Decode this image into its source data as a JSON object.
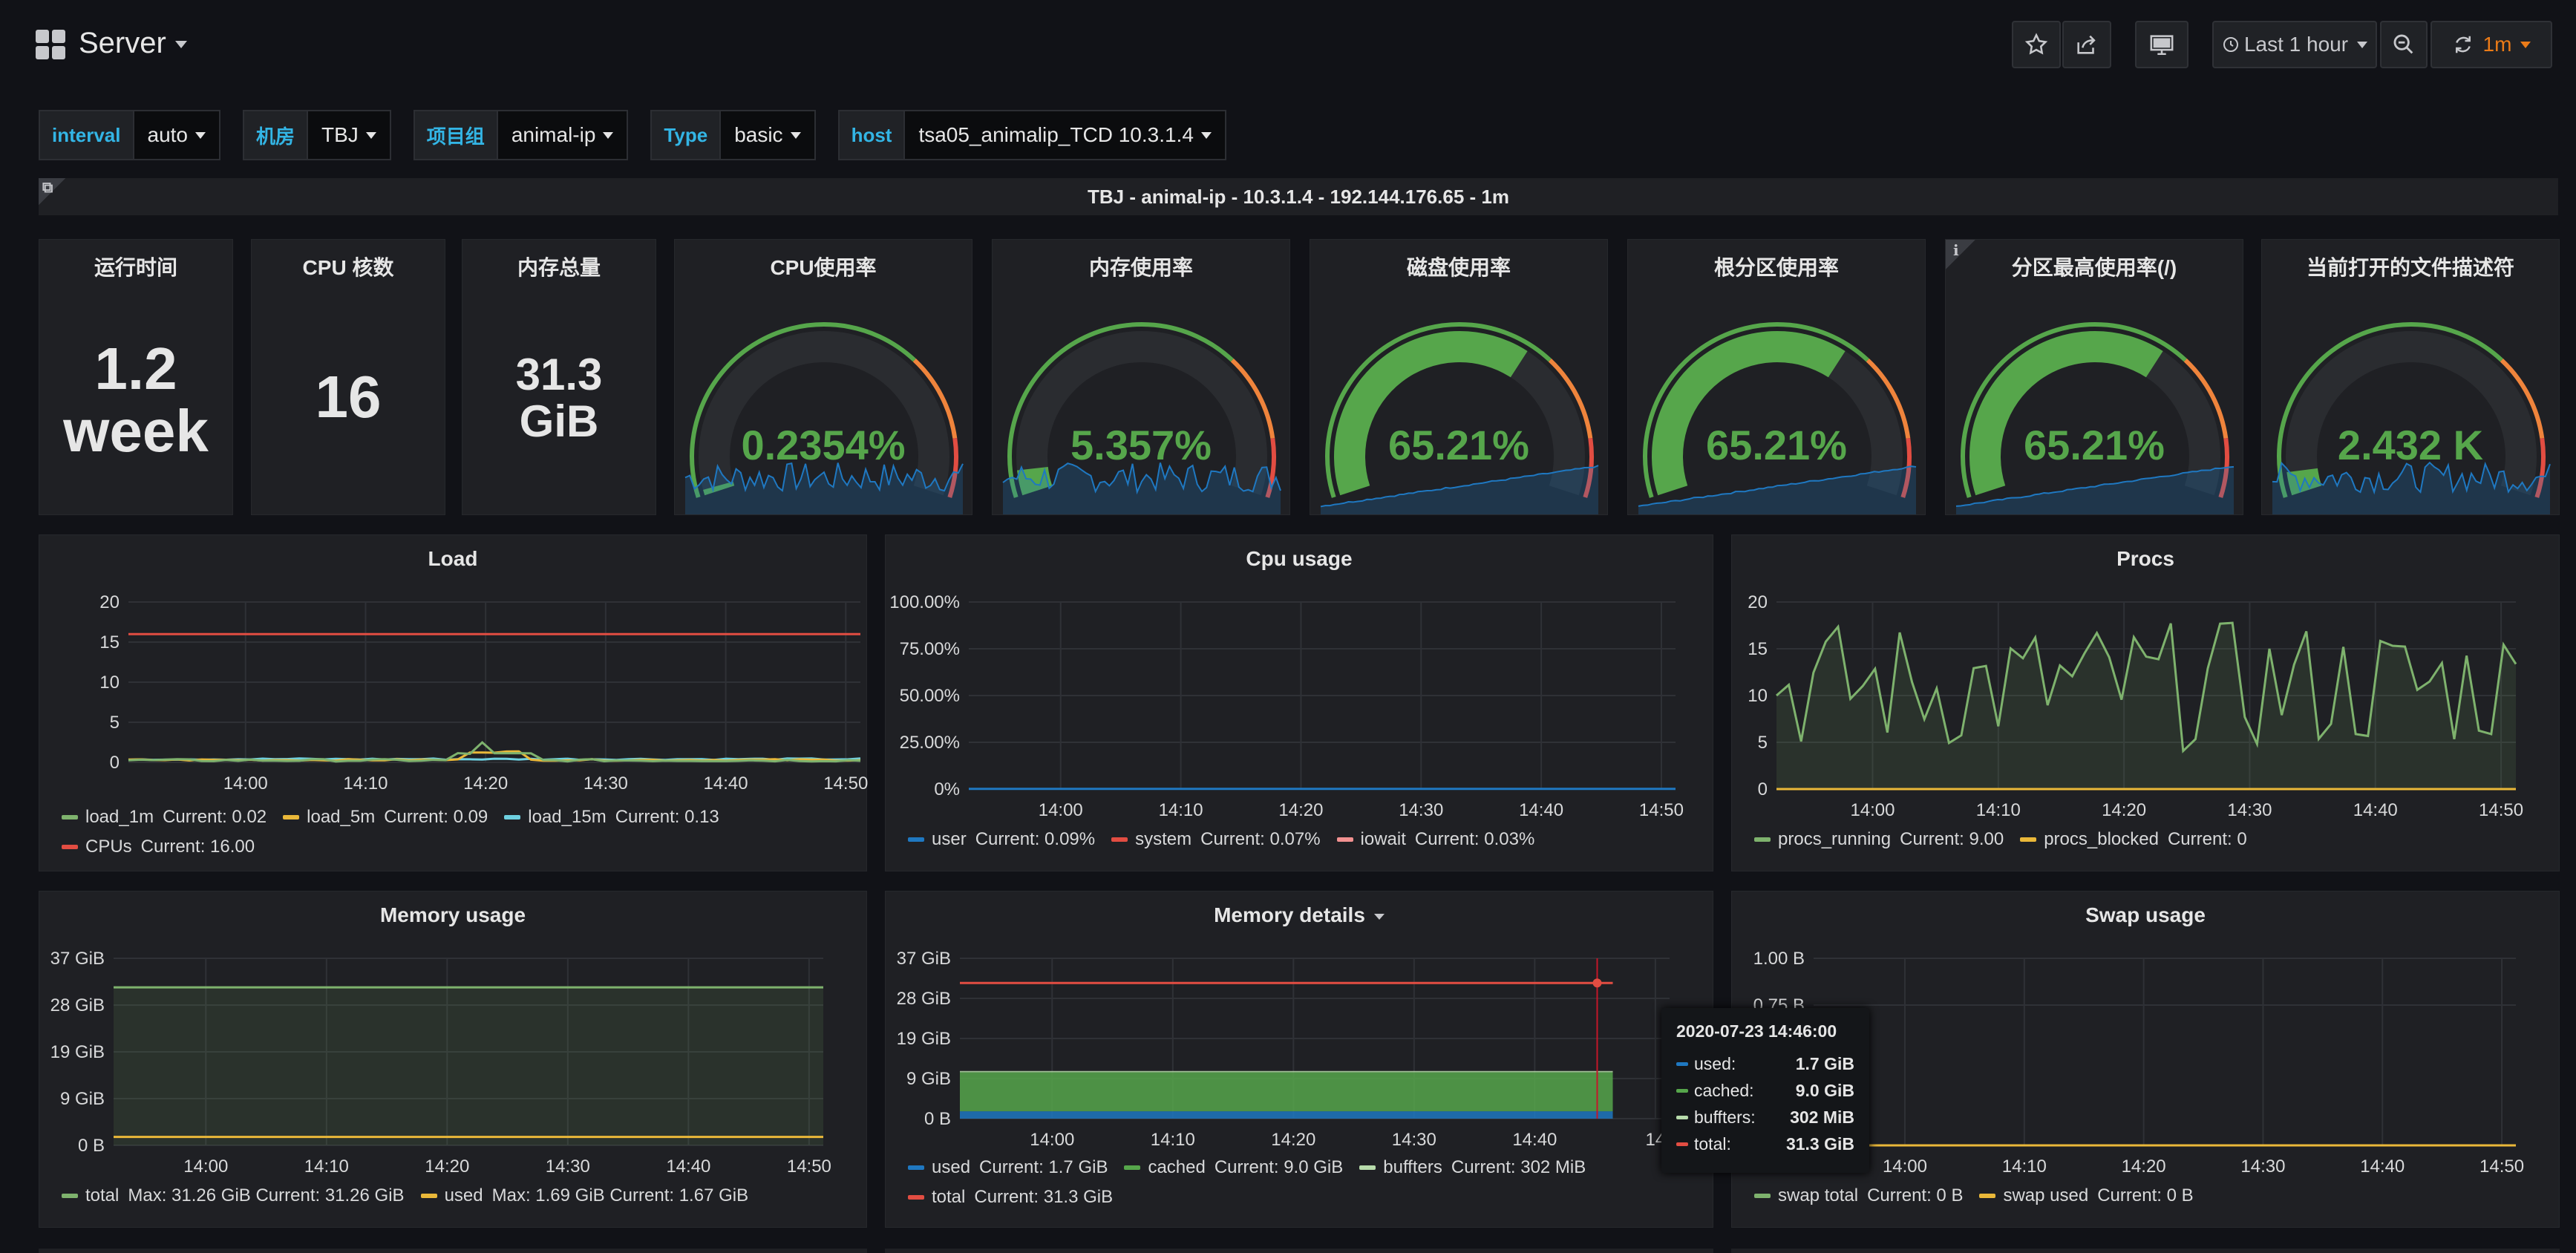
{
  "header": {
    "title": "Server",
    "time_range": "Last 1 hour",
    "refresh": "1m"
  },
  "variables": [
    {
      "label": "interval",
      "value": "auto"
    },
    {
      "label": "机房",
      "value": "TBJ"
    },
    {
      "label": "项目组",
      "value": "animal-ip"
    },
    {
      "label": "Type",
      "value": "basic"
    },
    {
      "label": "host",
      "value": "tsa05_animalip_TCD 10.3.1.4"
    }
  ],
  "info_bar": "TBJ - animal-ip - 10.3.1.4 - 192.144.176.65 - 1m",
  "stats": [
    {
      "title": "运行时间",
      "line1": "1.2",
      "line2": "week"
    },
    {
      "title": "CPU 核数",
      "line1": "16",
      "line2": ""
    },
    {
      "title": "内存总量",
      "line1": "31.3",
      "line2": "GiB"
    }
  ],
  "gauges": [
    {
      "title": "CPU使用率",
      "value": "0.2354%",
      "fraction": 0.0024,
      "color": "#56a64b"
    },
    {
      "title": "内存使用率",
      "value": "5.357%",
      "fraction": 0.054,
      "color": "#56a64b"
    },
    {
      "title": "磁盘使用率",
      "value": "65.21%",
      "fraction": 0.652,
      "color": "#56a64b"
    },
    {
      "title": "根分区使用率",
      "value": "65.21%",
      "fraction": 0.652,
      "color": "#56a64b"
    },
    {
      "title": "分区最高使用率(/)",
      "value": "65.21%",
      "fraction": 0.652,
      "color": "#56a64b"
    },
    {
      "title": "当前打开的文件描述符",
      "value": "2.432 K",
      "fraction": 0.05,
      "color": "#56a64b"
    }
  ],
  "charts": {
    "load": {
      "title": "Load",
      "y_ticks": [
        "20",
        "15",
        "10",
        "5",
        "0"
      ],
      "x_ticks": [
        "14:00",
        "14:10",
        "14:20",
        "14:30",
        "14:40",
        "14:50"
      ],
      "legend": [
        {
          "name": "load_1m",
          "current": "Current: 0.02",
          "color": "#7eb26d"
        },
        {
          "name": "load_5m",
          "current": "Current: 0.09",
          "color": "#eab839"
        },
        {
          "name": "load_15m",
          "current": "Current: 0.13",
          "color": "#6ed0e0"
        },
        {
          "name": "CPUs",
          "current": "Current: 16.00",
          "color": "#e24d42"
        }
      ]
    },
    "cpu": {
      "title": "Cpu usage",
      "y_ticks": [
        "100.00%",
        "75.00%",
        "50.00%",
        "25.00%",
        "0%"
      ],
      "x_ticks": [
        "14:00",
        "14:10",
        "14:20",
        "14:30",
        "14:40",
        "14:50"
      ],
      "legend": [
        {
          "name": "user",
          "current": "Current: 0.09%",
          "color": "#1f78c1"
        },
        {
          "name": "system",
          "current": "Current: 0.07%",
          "color": "#e24d42"
        },
        {
          "name": "iowait",
          "current": "Current: 0.03%",
          "color": "#f29191"
        }
      ]
    },
    "procs": {
      "title": "Procs",
      "y_ticks": [
        "20",
        "15",
        "10",
        "5",
        "0"
      ],
      "x_ticks": [
        "14:00",
        "14:10",
        "14:20",
        "14:30",
        "14:40",
        "14:50"
      ],
      "legend": [
        {
          "name": "procs_running",
          "current": "Current: 9.00",
          "color": "#7eb26d"
        },
        {
          "name": "procs_blocked",
          "current": "Current: 0",
          "color": "#eab839"
        }
      ]
    },
    "memory": {
      "title": "Memory usage",
      "y_ticks": [
        "37 GiB",
        "28 GiB",
        "19 GiB",
        "9 GiB",
        "0 B"
      ],
      "x_ticks": [
        "14:00",
        "14:10",
        "14:20",
        "14:30",
        "14:40",
        "14:50"
      ],
      "legend": [
        {
          "name": "total",
          "current": "Max: 31.26 GiB  Current: 31.26 GiB",
          "color": "#7eb26d"
        },
        {
          "name": "used",
          "current": "Max: 1.69 GiB  Current: 1.67 GiB",
          "color": "#eab839"
        }
      ]
    },
    "memdetail": {
      "title": "Memory details",
      "y_ticks": [
        "37 GiB",
        "28 GiB",
        "19 GiB",
        "9 GiB",
        "0 B"
      ],
      "x_ticks": [
        "14:00",
        "14:10",
        "14:20",
        "14:30",
        "14:40",
        "14"
      ],
      "legend": [
        {
          "name": "used",
          "current": "Current: 1.7 GiB",
          "color": "#1f78c1"
        },
        {
          "name": "cached",
          "current": "Current: 9.0 GiB",
          "color": "#56a64b"
        },
        {
          "name": "buffters",
          "current": "Current: 302 MiB",
          "color": "#b7dbab"
        },
        {
          "name": "total",
          "current": "Current: 31.3 GiB",
          "color": "#e24d42"
        }
      ]
    },
    "swap": {
      "title": "Swap usage",
      "y_ticks": [
        "1.00 B",
        "0.75 B"
      ],
      "x_ticks": [
        "14:00",
        "14:10",
        "14:20",
        "14:30",
        "14:40",
        "14:50"
      ],
      "legend": [
        {
          "name": "swap total",
          "current": "Current: 0 B",
          "color": "#7eb26d"
        },
        {
          "name": "swap used",
          "current": "Current: 0 B",
          "color": "#eab839"
        }
      ]
    }
  },
  "tooltip": {
    "time": "2020-07-23 14:46:00",
    "rows": [
      {
        "name": "used:",
        "value": "1.7 GiB",
        "color": "#1f78c1"
      },
      {
        "name": "cached:",
        "value": "9.0 GiB",
        "color": "#56a64b"
      },
      {
        "name": "buffters:",
        "value": "302 MiB",
        "color": "#b7dbab"
      },
      {
        "name": "total:",
        "value": "31.3 GiB",
        "color": "#e24d42"
      }
    ]
  },
  "chart_data": [
    {
      "type": "line",
      "title": "Load",
      "x": [
        "14:00",
        "14:10",
        "14:20",
        "14:30",
        "14:40",
        "14:50"
      ],
      "ylim": [
        0,
        20
      ],
      "series": [
        {
          "name": "CPUs",
          "values": [
            16,
            16,
            16,
            16,
            16,
            16
          ]
        },
        {
          "name": "load_1m",
          "values": [
            0.2,
            0.1,
            0.5,
            0.2,
            0.1,
            0.02
          ]
        }
      ]
    },
    {
      "type": "line",
      "title": "Procs",
      "x": [
        "14:00",
        "14:10",
        "14:20",
        "14:30",
        "14:40",
        "14:50"
      ],
      "ylim": [
        0,
        20
      ],
      "series": [
        {
          "name": "procs_running",
          "values": [
            10,
            16,
            9,
            12,
            15,
            9
          ]
        },
        {
          "name": "procs_blocked",
          "values": [
            0,
            0,
            0,
            0,
            0,
            0
          ]
        }
      ]
    },
    {
      "type": "line",
      "title": "Memory usage",
      "x": [
        "14:00",
        "14:10",
        "14:20",
        "14:30",
        "14:40",
        "14:50"
      ],
      "series": [
        {
          "name": "total",
          "values": [
            31.26,
            31.26,
            31.26,
            31.26,
            31.26,
            31.26
          ]
        },
        {
          "name": "used",
          "values": [
            1.69,
            1.68,
            1.67,
            1.68,
            1.67,
            1.67
          ]
        }
      ]
    },
    {
      "type": "area",
      "title": "Memory details",
      "x": [
        "14:00",
        "14:10",
        "14:20",
        "14:30",
        "14:40",
        "14:46"
      ],
      "series": [
        {
          "name": "used",
          "values": [
            1.7,
            1.7,
            1.7,
            1.7,
            1.7,
            1.7
          ]
        },
        {
          "name": "cached",
          "values": [
            9.0,
            9.0,
            9.0,
            9.0,
            9.0,
            9.0
          ]
        },
        {
          "name": "total",
          "values": [
            31.3,
            31.3,
            31.3,
            31.3,
            31.3,
            31.3
          ]
        }
      ]
    }
  ]
}
